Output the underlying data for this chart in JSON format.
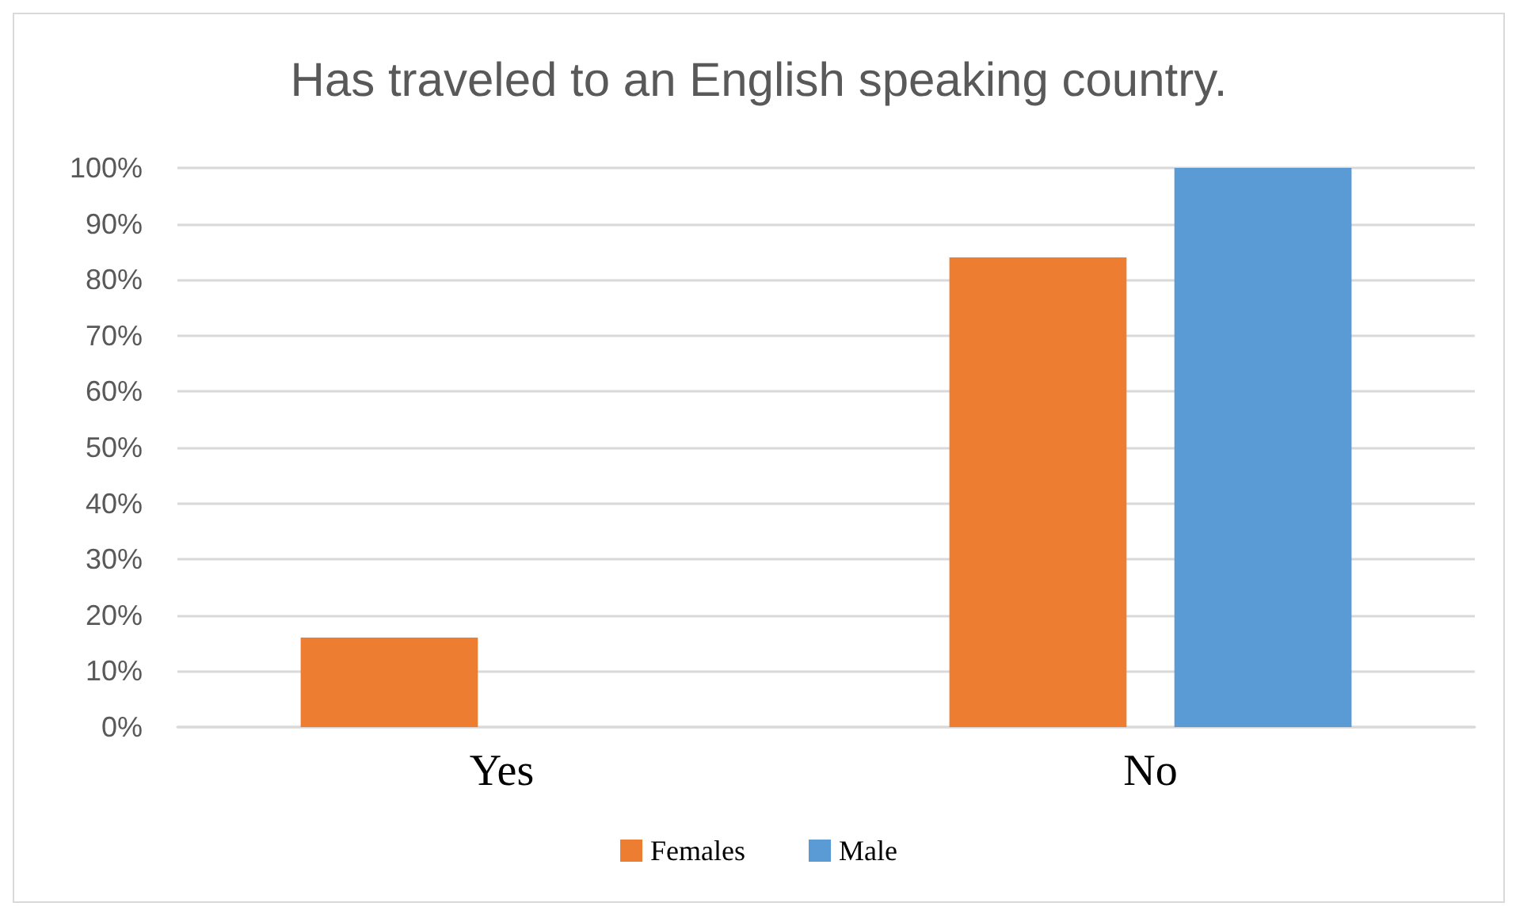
{
  "chart_data": {
    "type": "bar",
    "title": "Has traveled to an English speaking country.",
    "categories": [
      "Yes",
      "No"
    ],
    "series": [
      {
        "name": "Females",
        "color": "#ed7d31",
        "values": [
          16,
          84
        ]
      },
      {
        "name": "Male",
        "color": "#5b9bd5",
        "values": [
          0,
          100
        ]
      }
    ],
    "ylim": [
      0,
      100
    ],
    "yticks": [
      {
        "value": 0,
        "label": "0%"
      },
      {
        "value": 10,
        "label": "10%"
      },
      {
        "value": 20,
        "label": "20%"
      },
      {
        "value": 30,
        "label": "30%"
      },
      {
        "value": 40,
        "label": "40%"
      },
      {
        "value": 50,
        "label": "50%"
      },
      {
        "value": 60,
        "label": "60%"
      },
      {
        "value": 70,
        "label": "70%"
      },
      {
        "value": 80,
        "label": "80%"
      },
      {
        "value": 90,
        "label": "90%"
      },
      {
        "value": 100,
        "label": "100%"
      }
    ],
    "grid": true,
    "legend": "bottom"
  }
}
